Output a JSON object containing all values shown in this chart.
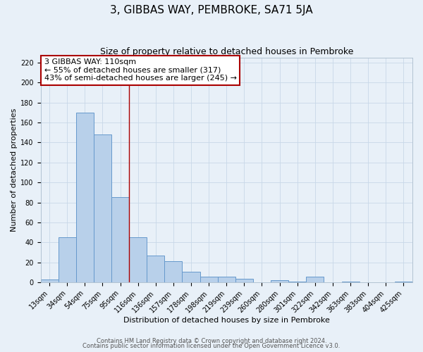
{
  "title": "3, GIBBAS WAY, PEMBROKE, SA71 5JA",
  "subtitle": "Size of property relative to detached houses in Pembroke",
  "xlabel": "Distribution of detached houses by size in Pembroke",
  "ylabel": "Number of detached properties",
  "bin_labels": [
    "13sqm",
    "34sqm",
    "54sqm",
    "75sqm",
    "95sqm",
    "116sqm",
    "136sqm",
    "157sqm",
    "178sqm",
    "198sqm",
    "219sqm",
    "239sqm",
    "260sqm",
    "280sqm",
    "301sqm",
    "322sqm",
    "342sqm",
    "363sqm",
    "383sqm",
    "404sqm",
    "425sqm"
  ],
  "bar_values": [
    3,
    45,
    170,
    148,
    85,
    45,
    27,
    21,
    11,
    6,
    6,
    4,
    0,
    2,
    1,
    6,
    0,
    1,
    0,
    0,
    1
  ],
  "bar_color": "#b8d0ea",
  "bar_edge_color": "#6699cc",
  "grid_color": "#c8d8e8",
  "background_color": "#e8f0f8",
  "vline_x": 5,
  "vline_color": "#aa0000",
  "annotation_lines": [
    "3 GIBBAS WAY: 110sqm",
    "← 55% of detached houses are smaller (317)",
    "43% of semi-detached houses are larger (245) →"
  ],
  "annotation_box_color": "#ffffff",
  "annotation_border_color": "#aa0000",
  "ylim": [
    0,
    225
  ],
  "yticks": [
    0,
    20,
    40,
    60,
    80,
    100,
    120,
    140,
    160,
    180,
    200,
    220
  ],
  "footer_line1": "Contains HM Land Registry data © Crown copyright and database right 2024.",
  "footer_line2": "Contains public sector information licensed under the Open Government Licence v3.0.",
  "title_fontsize": 11,
  "subtitle_fontsize": 9,
  "axis_label_fontsize": 8,
  "tick_fontsize": 7,
  "annotation_fontsize": 8,
  "footer_fontsize": 6
}
